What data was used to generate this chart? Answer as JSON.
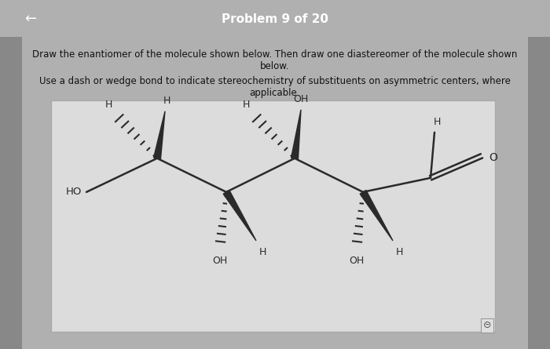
{
  "title": "Problem 9 of 20",
  "instruction1": "Draw the enantiomer of the molecule shown below. Then draw one diastereomer of the molecule shown",
  "instruction1b": "below.",
  "instruction2": "Use a dash or wedge bond to indicate stereochemistry of substituents on asymmetric centers, where",
  "instruction2b": "applicable.",
  "bg_dark": "#b0b0b0",
  "bg_light": "#c8c8c8",
  "header_bg": "#cc2222",
  "panel_bg": "#dcdcdc",
  "panel_border": "#aaaaaa",
  "text_color": "#111111",
  "header_text": "#ffffff",
  "mol_color": "#2a2a2a"
}
